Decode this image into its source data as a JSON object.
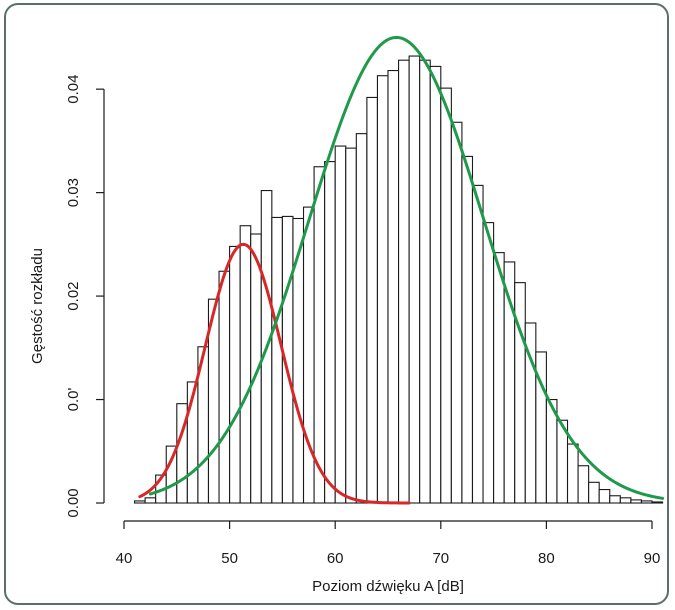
{
  "chart_data": {
    "type": "bar",
    "xlabel": "Poziom dźwięku A [dB]",
    "ylabel": "Gęstość rozkładu",
    "xlim": [
      40,
      91
    ],
    "ylim": [
      0,
      0.046
    ],
    "x_ticks": [
      40,
      50,
      60,
      70,
      80,
      90
    ],
    "x_tick_labels": [
      "40",
      "50",
      "60",
      "70",
      "80",
      "90"
    ],
    "y_ticks": [
      0.0,
      0.01,
      0.02,
      0.03,
      0.04
    ],
    "y_tick_labels": [
      "0.00",
      "0.0'",
      "0.02",
      "0.03",
      "0.04"
    ],
    "bin_width": 1,
    "bin_starts": [
      41,
      42,
      43,
      44,
      45,
      46,
      47,
      48,
      49,
      50,
      51,
      52,
      53,
      54,
      55,
      56,
      57,
      58,
      59,
      60,
      61,
      62,
      63,
      64,
      65,
      66,
      67,
      68,
      69,
      70,
      71,
      72,
      73,
      74,
      75,
      76,
      77,
      78,
      79,
      80,
      81,
      82,
      83,
      84,
      85,
      86,
      87,
      88,
      89,
      90
    ],
    "values": [
      0.0002,
      0.0005,
      0.0027,
      0.0055,
      0.0096,
      0.0117,
      0.0151,
      0.0197,
      0.0224,
      0.0248,
      0.0268,
      0.026,
      0.0302,
      0.0276,
      0.0277,
      0.0275,
      0.0286,
      0.0325,
      0.033,
      0.0345,
      0.0343,
      0.0357,
      0.0392,
      0.0413,
      0.0418,
      0.0428,
      0.0432,
      0.0428,
      0.0422,
      0.0401,
      0.0368,
      0.0335,
      0.0307,
      0.0271,
      0.0242,
      0.0233,
      0.0213,
      0.0174,
      0.0146,
      0.01,
      0.008,
      0.0057,
      0.0036,
      0.002,
      0.0013,
      0.0007,
      0.0005,
      0.0003,
      0.0002,
      0.0001
    ],
    "series": [
      {
        "kind": "normal-curve",
        "color": "#d62828",
        "mean": 51.3,
        "sd": 3.6,
        "peak": 0.025,
        "x_range": [
          41.5,
          67
        ]
      },
      {
        "kind": "normal-curve",
        "color": "#1f9a4a",
        "mean": 65.8,
        "sd": 8.3,
        "peak": 0.045,
        "x_range": [
          42.5,
          91
        ]
      }
    ],
    "colors": {
      "bar_fill": "#ffffff",
      "bar_stroke": "#1a1a1a",
      "frame": "#5b6e68"
    }
  }
}
